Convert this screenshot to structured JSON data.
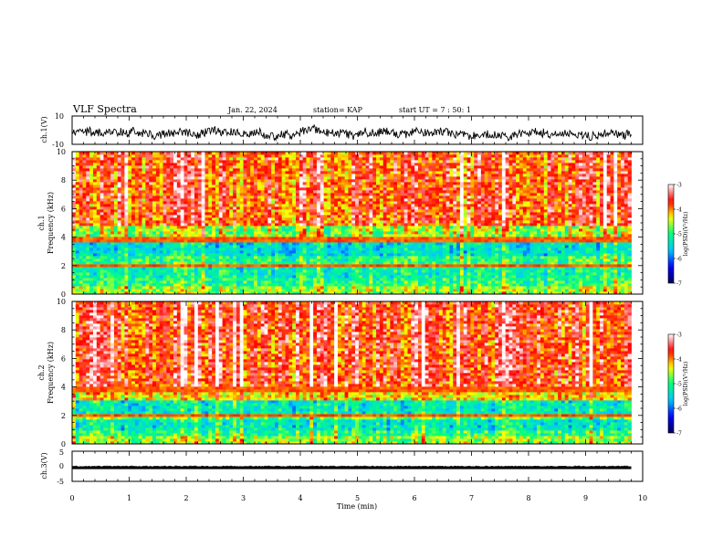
{
  "header": {
    "title": "VLF Spectra",
    "date": "Jan. 22, 2024",
    "station": "station= KAP",
    "start": "start  UT =  7 : 50: 1"
  },
  "chart_data": [
    {
      "type": "line",
      "ylabel": "ch.1(V)",
      "ylim": [
        -10,
        10
      ],
      "ytick_labels": [
        "10",
        "-10"
      ],
      "xlim": [
        0,
        10
      ],
      "description_series": "noisy waveform oscillating around about -2 V"
    },
    {
      "type": "heatmap",
      "ylabel_line1": "ch.1",
      "ylabel_line2": "Frequency  (kHz)",
      "ylim": [
        0,
        10
      ],
      "ytick_labels": [
        "0",
        "2",
        "4",
        "6",
        "8",
        "10"
      ],
      "xlim": [
        0,
        10
      ],
      "data_end_min": 9.8,
      "band_levels": [
        {
          "f0": 0.0,
          "f1": 0.6,
          "level": -4.6
        },
        {
          "f0": 0.6,
          "f1": 1.2,
          "level": -5.0
        },
        {
          "f0": 1.2,
          "f1": 2.0,
          "level": -5.2
        },
        {
          "f0": 2.0,
          "f1": 2.6,
          "level": -5.0
        },
        {
          "f0": 2.6,
          "f1": 3.6,
          "level": -5.4
        },
        {
          "f0": 3.6,
          "f1": 4.0,
          "level": -4.0
        },
        {
          "f0": 4.0,
          "f1": 4.8,
          "level": -4.6
        },
        {
          "f0": 4.8,
          "f1": 10.0,
          "level": -3.8
        }
      ],
      "colorbar": {
        "label": "log(PSD)(V²/Hz)",
        "min": -7,
        "max": -3,
        "tick_values": [
          -3,
          -4,
          -5,
          -6,
          -7
        ],
        "tick_labels": [
          "-3",
          "-4",
          "-5",
          "-6",
          "-7"
        ]
      }
    },
    {
      "type": "heatmap",
      "ylabel_line1": "ch.2",
      "ylabel_line2": "Frequency  (kHz)",
      "ylim": [
        0,
        10
      ],
      "ytick_labels": [
        "0",
        "2",
        "4",
        "6",
        "8",
        "10"
      ],
      "xlim": [
        0,
        10
      ],
      "data_end_min": 9.8,
      "band_levels": [
        {
          "f0": 0.0,
          "f1": 0.5,
          "level": -4.6
        },
        {
          "f0": 0.5,
          "f1": 1.0,
          "level": -5.0
        },
        {
          "f0": 1.0,
          "f1": 1.8,
          "level": -5.3
        },
        {
          "f0": 1.8,
          "f1": 2.2,
          "level": -4.8
        },
        {
          "f0": 2.2,
          "f1": 3.0,
          "level": -5.3
        },
        {
          "f0": 3.0,
          "f1": 3.8,
          "level": -4.3
        },
        {
          "f0": 3.8,
          "f1": 10.0,
          "level": -3.7
        }
      ],
      "colorbar": {
        "label": "log(PSD)(V²/Hz)",
        "min": -7,
        "max": -3,
        "tick_values": [
          -3,
          -4,
          -5,
          -6,
          -7
        ],
        "tick_labels": [
          "-3",
          "-4",
          "-5",
          "-6",
          "-7"
        ]
      }
    },
    {
      "type": "line",
      "ylabel": "ch.3(V)",
      "ylim": [
        -5,
        5
      ],
      "ytick_labels": [
        "5",
        "0",
        "-5"
      ],
      "xlim": [
        0,
        10
      ],
      "description_series": "dense signal saturated near -0.5 V",
      "xlabel": "Time  (min)",
      "xtick_values": [
        0,
        1,
        2,
        3,
        4,
        5,
        6,
        7,
        8,
        9,
        10
      ],
      "xtick_labels": [
        "0",
        "1",
        "2",
        "3",
        "4",
        "5",
        "6",
        "7",
        "8",
        "9",
        "10"
      ]
    }
  ],
  "colors": {
    "colormap": [
      "#00005a",
      "#0000ff",
      "#00c8ff",
      "#00ff80",
      "#ffff00",
      "#ff0000",
      "#ffffff"
    ]
  }
}
